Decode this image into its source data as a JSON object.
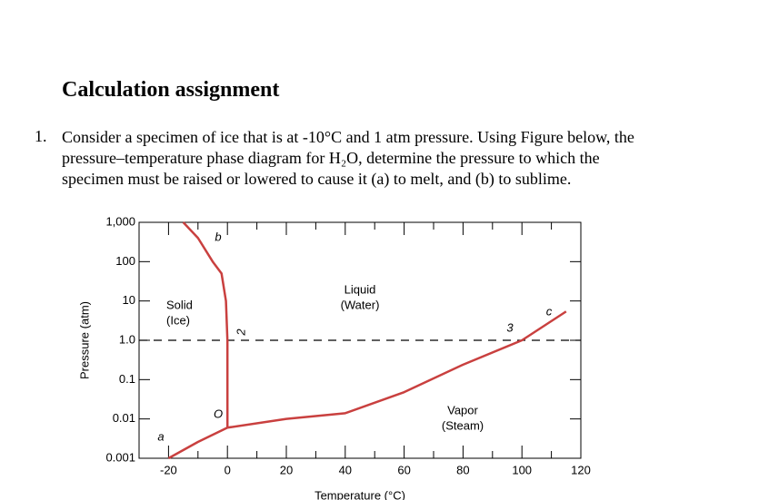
{
  "heading": "Calculation assignment",
  "question": {
    "number": "1.",
    "lines": [
      "Consider a specimen of ice that is at -10°C and 1 atm pressure. Using Figure below, the",
      "pressure–temperature phase diagram for H₂O, determine the pressure to which the",
      "specimen must be raised or lowered to cause it (a) to melt, and (b) to sublime."
    ]
  },
  "chart_data": {
    "type": "line",
    "xlabel": "Temperature (°C)",
    "ylabel": "Pressure (atm)",
    "xlim": [
      -30,
      120
    ],
    "xticks": [
      -20,
      0,
      20,
      40,
      60,
      80,
      100,
      120
    ],
    "ylim": [
      0.001,
      1000
    ],
    "ylog": true,
    "yticks": [
      {
        "value": 1000,
        "label": "1,000"
      },
      100,
      10,
      {
        "value": 1,
        "label": "1.0"
      },
      0.1,
      0.01,
      0.001
    ],
    "reference_line": 1,
    "series": [
      {
        "color": "#c9403f",
        "x": [
          -20,
          -10,
          0.01
        ],
        "y": [
          0.001,
          0.0026,
          0.006
        ]
      },
      {
        "color": "#c9403f",
        "x": [
          0.01,
          0,
          -0.5,
          -2,
          -5,
          -10,
          -15
        ],
        "y": [
          0.006,
          1,
          10,
          50,
          100,
          400,
          1000
        ]
      },
      {
        "color": "#c9403f",
        "x": [
          0.01,
          20,
          40,
          60,
          80,
          100,
          115
        ],
        "y": [
          0.006,
          0.01,
          0.014,
          0.048,
          0.24,
          1,
          5.4
        ]
      }
    ],
    "regions": [
      [
        "Solid",
        "(Ice)"
      ],
      [
        "Liquid",
        "(Water)"
      ],
      [
        "Vapor",
        "(Steam)"
      ]
    ],
    "point_labels": [
      "a",
      "b",
      "c",
      "O",
      "2",
      "3"
    ]
  }
}
